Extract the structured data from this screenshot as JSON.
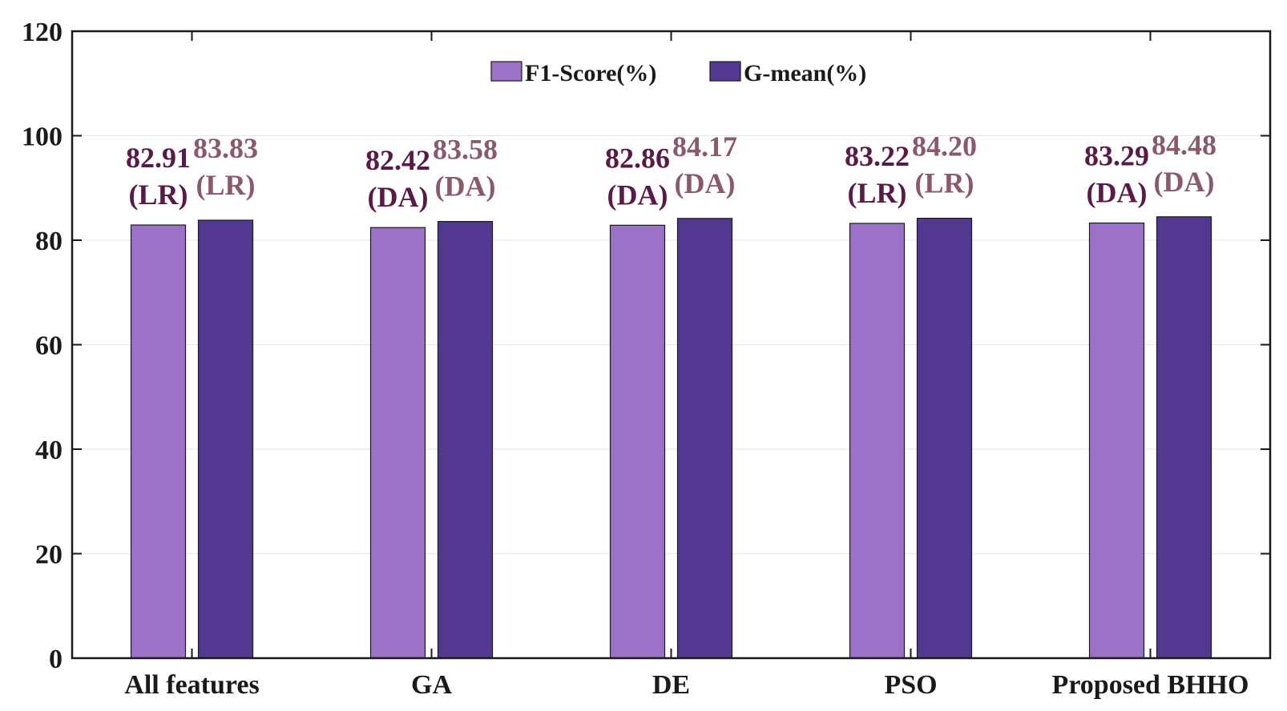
{
  "chart_data": {
    "type": "bar",
    "title": "",
    "xlabel": "",
    "ylabel": "",
    "ylim": [
      0,
      120
    ],
    "yticks": [
      0,
      20,
      40,
      60,
      80,
      100,
      120
    ],
    "grid": true,
    "legend_position": "top-center",
    "categories": [
      "All features",
      "GA",
      "DE",
      "PSO",
      "Proposed BHHO"
    ],
    "series": [
      {
        "name": "F1-Score(%)",
        "color": "#9b72c8",
        "label_color": "#5a1a48",
        "values": [
          82.91,
          82.42,
          82.86,
          83.22,
          83.29
        ],
        "value_labels": [
          "82.91",
          "82.42",
          "82.86",
          "83.22",
          "83.29"
        ],
        "method_labels": [
          "(LR)",
          "(DA)",
          "(DA)",
          "(LR)",
          "(DA)"
        ]
      },
      {
        "name": "G-mean(%)",
        "color": "#533891",
        "label_color": "#8a5a6a",
        "values": [
          83.83,
          83.58,
          84.17,
          84.2,
          84.48
        ],
        "value_labels": [
          "83.83",
          "83.58",
          "84.17",
          "84.20",
          "84.48"
        ],
        "method_labels": [
          "(LR)",
          "(DA)",
          "(DA)",
          "(LR)",
          "(DA)"
        ]
      }
    ]
  }
}
